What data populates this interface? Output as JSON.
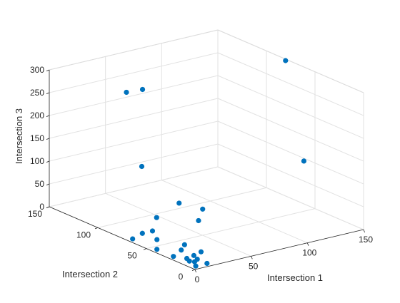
{
  "chart_data": {
    "type": "scatter",
    "projection": "3d",
    "title": "",
    "xlabel": "Intersection 1",
    "ylabel": "Intersection 2",
    "zlabel": "Intersection 3",
    "xlim": [
      0,
      150
    ],
    "ylim": [
      0,
      150
    ],
    "zlim": [
      0,
      300
    ],
    "xticks": [
      "0",
      "50",
      "100",
      "150"
    ],
    "yticks": [
      "0",
      "50",
      "100",
      "150"
    ],
    "zticks": [
      "0",
      "50",
      "100",
      "150",
      "200",
      "250",
      "300"
    ],
    "grid": true,
    "marker_color": "#0072BD",
    "points": [
      {
        "x": 148,
        "y": 78,
        "z": 300
      },
      {
        "x": 60,
        "y": 140,
        "z": 225
      },
      {
        "x": 70,
        "y": 135,
        "z": 230
      },
      {
        "x": 128,
        "y": 36,
        "z": 130
      },
      {
        "x": 46,
        "y": 108,
        "z": 100
      },
      {
        "x": 55,
        "y": 80,
        "z": 40
      },
      {
        "x": 63,
        "y": 65,
        "z": 36
      },
      {
        "x": 35,
        "y": 80,
        "z": 20
      },
      {
        "x": 55,
        "y": 60,
        "z": 20
      },
      {
        "x": 27,
        "y": 75,
        "z": 0
      },
      {
        "x": 18,
        "y": 75,
        "z": 0
      },
      {
        "x": 18,
        "y": 60,
        "z": 0
      },
      {
        "x": 5,
        "y": 70,
        "z": 0
      },
      {
        "x": 27,
        "y": 42,
        "z": 0
      },
      {
        "x": 5,
        "y": 45,
        "z": 0
      },
      {
        "x": 18,
        "y": 35,
        "z": 0
      },
      {
        "x": 27,
        "y": 25,
        "z": 0
      },
      {
        "x": 5,
        "y": 28,
        "z": 0
      },
      {
        "x": 18,
        "y": 22,
        "z": 0
      },
      {
        "x": 15,
        "y": 15,
        "z": 0
      },
      {
        "x": 10,
        "y": 20,
        "z": 0
      },
      {
        "x": 8,
        "y": 15,
        "z": 0
      },
      {
        "x": 15,
        "y": 5,
        "z": 0
      },
      {
        "x": 5,
        "y": 5,
        "z": 0
      },
      {
        "x": 10,
        "y": 12,
        "z": 0
      }
    ]
  }
}
